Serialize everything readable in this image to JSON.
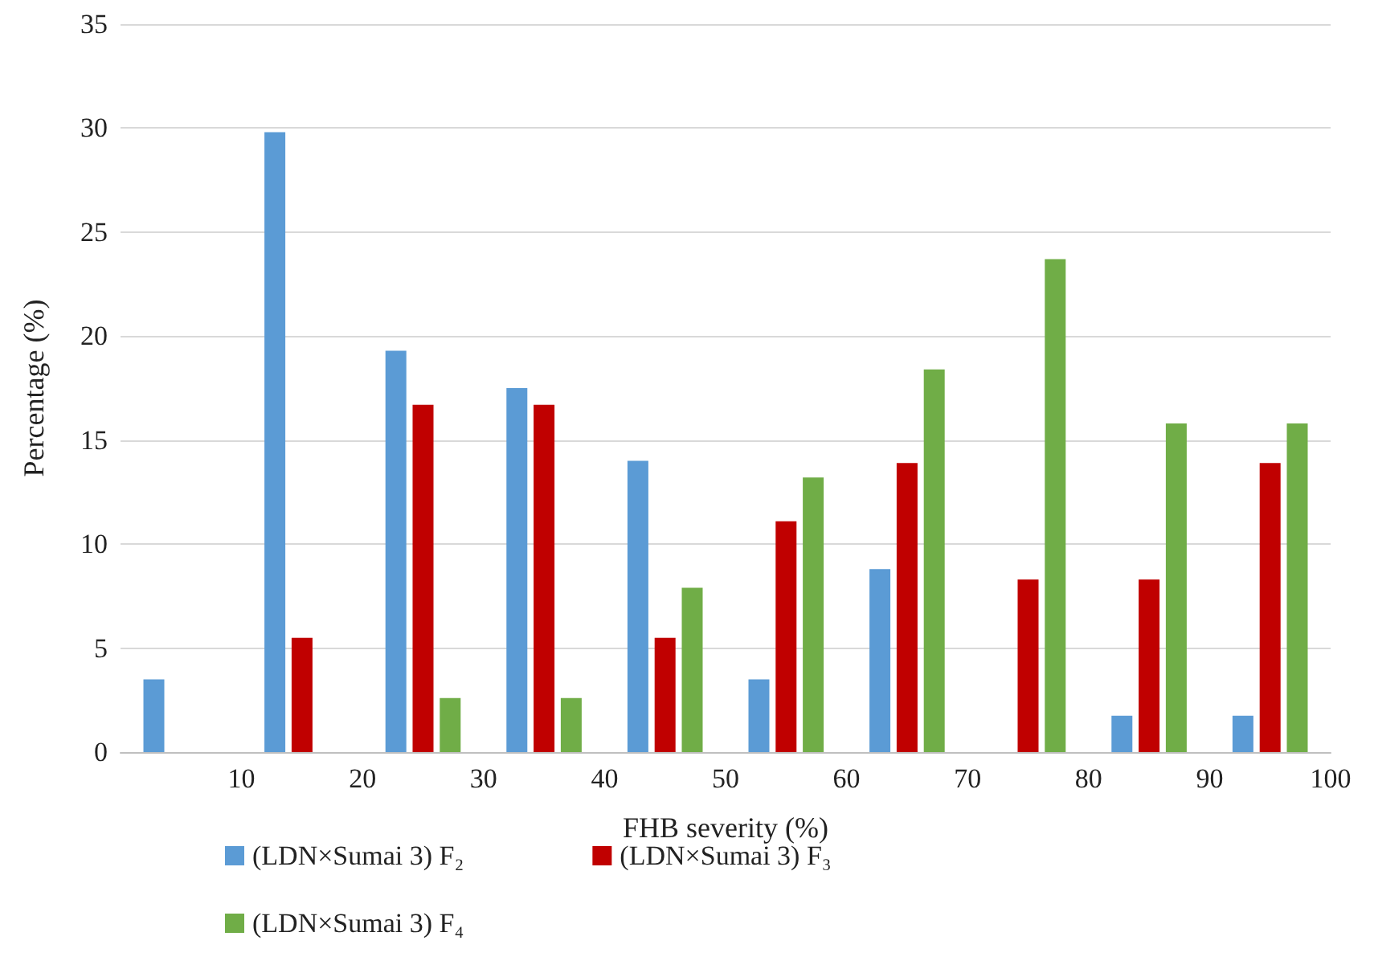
{
  "chart_data": {
    "type": "bar",
    "xlabel": "FHB severity (%)",
    "ylabel": "Percentage (%)",
    "x": [
      5,
      15,
      25,
      35,
      45,
      55,
      65,
      75,
      85,
      95
    ],
    "series": [
      {
        "name": "(LDN×Sumai 3) F₂",
        "color": "#5b9bd5",
        "values": [
          3.5,
          29.8,
          19.3,
          17.5,
          14.0,
          3.5,
          8.8,
          0,
          1.75,
          1.75
        ]
      },
      {
        "name": "(LDN×Sumai 3) F₃",
        "color": "#c00000",
        "values": [
          0,
          5.5,
          16.7,
          16.7,
          5.5,
          11.1,
          13.9,
          8.3,
          8.3,
          13.9
        ]
      },
      {
        "name": "(LDN×Sumai 3) F₄",
        "color": "#70ad47",
        "values": [
          0,
          0,
          2.6,
          2.6,
          7.9,
          13.2,
          18.4,
          23.7,
          15.8,
          15.8
        ]
      }
    ],
    "xlim": [
      0,
      100
    ],
    "xticks": [
      10,
      20,
      30,
      40,
      50,
      60,
      70,
      80,
      90,
      100
    ],
    "ylim": [
      0,
      35
    ],
    "yticks": [
      0,
      5,
      10,
      15,
      20,
      25,
      30,
      35
    ],
    "grid": "y",
    "legend": "bottom"
  }
}
